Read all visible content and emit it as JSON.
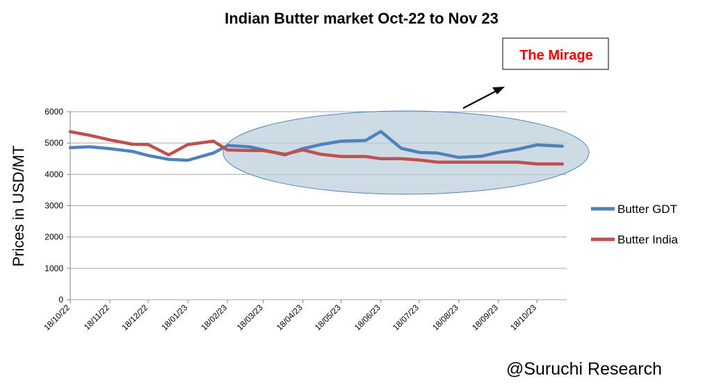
{
  "chart_data": {
    "type": "line",
    "title": "Indian Butter market Oct-22 to Nov 23",
    "ylabel": "Prices in USD/MT",
    "xlabel": "",
    "ylim": [
      0,
      6000
    ],
    "y_ticks": [
      0,
      1000,
      2000,
      3000,
      4000,
      5000,
      6000
    ],
    "x_tick_labels": [
      "18/10/22",
      "18/11/22",
      "18/12/22",
      "18/01/23",
      "18/02/23",
      "18/03/23",
      "18/04/23",
      "18/05/23",
      "18/06/23",
      "18/07/23",
      "18/08/23",
      "18/09/23",
      "18/10/23"
    ],
    "grid": "horizontal",
    "legend_position": "right",
    "series": [
      {
        "name": "Butter GDT",
        "color": "#4f81bd",
        "points": [
          [
            "18/10/22",
            4850
          ],
          [
            "02/11/22",
            4880
          ],
          [
            "18/11/22",
            4820
          ],
          [
            "06/12/22",
            4730
          ],
          [
            "18/12/22",
            4600
          ],
          [
            "03/01/23",
            4480
          ],
          [
            "18/01/23",
            4450
          ],
          [
            "07/02/23",
            4680
          ],
          [
            "18/02/23",
            4920
          ],
          [
            "07/03/23",
            4880
          ],
          [
            "18/03/23",
            4780
          ],
          [
            "04/04/23",
            4620
          ],
          [
            "18/04/23",
            4820
          ],
          [
            "02/05/23",
            4950
          ],
          [
            "18/05/23",
            5060
          ],
          [
            "06/06/23",
            5080
          ],
          [
            "18/06/23",
            5370
          ],
          [
            "04/07/23",
            4830
          ],
          [
            "18/07/23",
            4700
          ],
          [
            "01/08/23",
            4680
          ],
          [
            "18/08/23",
            4540
          ],
          [
            "05/09/23",
            4580
          ],
          [
            "18/09/23",
            4700
          ],
          [
            "03/10/23",
            4800
          ],
          [
            "18/10/23",
            4940
          ],
          [
            "07/11/23",
            4900
          ]
        ]
      },
      {
        "name": "Butter India",
        "color": "#c0504d",
        "points": [
          [
            "18/10/22",
            5360
          ],
          [
            "02/11/22",
            5250
          ],
          [
            "18/11/22",
            5100
          ],
          [
            "06/12/22",
            4960
          ],
          [
            "18/12/22",
            4950
          ],
          [
            "03/01/23",
            4620
          ],
          [
            "18/01/23",
            4950
          ],
          [
            "07/02/23",
            5060
          ],
          [
            "18/02/23",
            4780
          ],
          [
            "07/03/23",
            4760
          ],
          [
            "18/03/23",
            4760
          ],
          [
            "04/04/23",
            4640
          ],
          [
            "18/04/23",
            4780
          ],
          [
            "02/05/23",
            4640
          ],
          [
            "18/05/23",
            4570
          ],
          [
            "06/06/23",
            4570
          ],
          [
            "18/06/23",
            4500
          ],
          [
            "04/07/23",
            4500
          ],
          [
            "18/07/23",
            4460
          ],
          [
            "01/08/23",
            4390
          ],
          [
            "18/08/23",
            4390
          ],
          [
            "05/09/23",
            4390
          ],
          [
            "18/09/23",
            4390
          ],
          [
            "03/10/23",
            4390
          ],
          [
            "18/10/23",
            4330
          ],
          [
            "07/11/23",
            4330
          ]
        ]
      }
    ],
    "annotations": [
      {
        "text": "The Mirage",
        "color": "#ff0000",
        "style": "boxed, with arrow pointing up-right from the highlighted ellipse"
      }
    ],
    "highlight": {
      "shape": "ellipse",
      "color": "#b8cdd8",
      "from": "18/02/23",
      "to": "07/11/23"
    }
  },
  "credit": "@Suruchi Research"
}
